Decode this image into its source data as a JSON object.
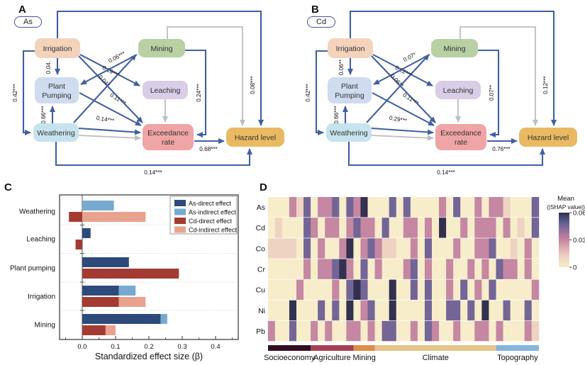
{
  "panel_a": {
    "letter": "A",
    "tag": "As",
    "edge_labels": {
      "irrigation_plant_pumping": "0.04.",
      "irrigation_weathering": "0.42***",
      "weathering_plant_pumping": "0.66***",
      "plant_pumping_mining": "0.06***",
      "irrigation_leaching": "0.19***",
      "irrigation_exceedance": "0.04*",
      "plant_pumping_exceedance": "0.11***",
      "weathering_exceedance": "0.14***",
      "mining_exceedance": "0.24***",
      "exceedance_hazard": "0.68***",
      "irrigation_hazard": "0.08***",
      "weathering_hazard": "0.14***"
    }
  },
  "panel_b": {
    "letter": "B",
    "tag": "Cd",
    "edge_labels": {
      "irrigation_plant_pumping": "0.06**",
      "irrigation_weathering": "0.42***",
      "weathering_plant_pumping": "0.66***",
      "plant_pumping_mining": "0.07*",
      "irrigation_leaching": "0.22***",
      "irrigation_exceedance": "0.06**",
      "plant_pumping_exceedance": "0.11***",
      "weathering_exceedance": "0.29***",
      "mining_exceedance": "0.07**",
      "exceedance_hazard": "0.76***",
      "irrigation_hazard": "0.12***",
      "weathering_hazard": "0.14***"
    }
  },
  "panel_c": {
    "letter": "C"
  },
  "panel_d": {
    "letter": "D"
  },
  "sem_nodes": {
    "irrigation": "Irrigation",
    "mining": "Mining",
    "plant_pumping": "Plant Pumping",
    "leaching": "Leaching",
    "weathering": "Weathering",
    "exceedance": "Exceedance rate",
    "hazard": "Hazard level"
  },
  "colors": {
    "node_irrigation": "#f3d3bb",
    "node_mining": "#b8d0a3",
    "node_plant_pumping": "#cfdbee",
    "node_leaching": "#dacde7",
    "node_weathering": "#c6e3ee",
    "node_exceedance": "#efa4a6",
    "node_hazard": "#e9ba62",
    "arrow_blue": "#41609f",
    "arrow_gray": "#bcbdbf",
    "pill_border": "#4e51a0"
  },
  "chart_data": [
    {
      "id": "C",
      "type": "bar",
      "orientation": "horizontal",
      "xlabel": "Standardized effect size (β)",
      "categories": [
        "Weathering",
        "Leaching",
        "Plant pumping",
        "Irrigation",
        "Mining"
      ],
      "series": [
        {
          "name": "As-direct effect",
          "color": "#2d4a7a",
          "role": "direct",
          "pair": "As",
          "values": [
            0,
            0.025,
            0.14,
            0.11,
            0.235
          ]
        },
        {
          "name": "As-indirect effect",
          "color": "#76aace",
          "role": "indirect",
          "pair": "As",
          "values": [
            0.095,
            0,
            0,
            0.05,
            0.02
          ]
        },
        {
          "name": "Cd-direct effect",
          "color": "#a43b32",
          "role": "direct",
          "pair": "Cd",
          "values": [
            -0.04,
            -0.02,
            0.29,
            0.11,
            0.07
          ]
        },
        {
          "name": "Cd-indirect effect",
          "color": "#e9a28e",
          "role": "indirect",
          "pair": "Cd",
          "values": [
            0.19,
            0,
            0,
            0.08,
            0.03
          ]
        }
      ],
      "stacking": "indirect stacked after direct within each element pair",
      "xlim": [
        -0.068,
        0.468
      ],
      "xticks": [
        0.0,
        0.1,
        0.2,
        0.3,
        0.4
      ],
      "xtick_labels": [
        "0.0",
        "0.1",
        "0.2",
        "0.3",
        "0.4"
      ],
      "legend_position": "top-right",
      "grid": "dotted separators between categories"
    },
    {
      "id": "D",
      "type": "heatmap",
      "rows": [
        "As",
        "Cd",
        "Co",
        "Cr",
        "Cu",
        "Ni",
        "Pb"
      ],
      "n_columns": 38,
      "vmin": 0,
      "vmax": 0.06,
      "values": [
        [
          0,
          0,
          0,
          0.03,
          0.012,
          0.046,
          0,
          0.03,
          0.03,
          0.046,
          0,
          0.046,
          0.03,
          0.06,
          0,
          0,
          0,
          0.046,
          0,
          0.046,
          0,
          0,
          0,
          0,
          0.03,
          0,
          0.046,
          0,
          0,
          0.03,
          0,
          0.03,
          0.03,
          0.012,
          0,
          0,
          0,
          0.046
        ],
        [
          0,
          0.012,
          0,
          0,
          0,
          0.046,
          0.03,
          0,
          0.03,
          0.03,
          0,
          0.03,
          0.046,
          0.03,
          0.03,
          0,
          0.046,
          0,
          0,
          0.03,
          0.03,
          0,
          0.03,
          0,
          0.06,
          0,
          0,
          0.03,
          0,
          0.03,
          0.03,
          0.03,
          0,
          0.03,
          0,
          0.012,
          0,
          0.046
        ],
        [
          0.012,
          0.012,
          0.012,
          0.012,
          0,
          0.046,
          0,
          0.03,
          0,
          0,
          0.03,
          0.06,
          0,
          0.03,
          0.046,
          0.03,
          0.012,
          0.012,
          0,
          0,
          0.03,
          0,
          0.046,
          0,
          0,
          0,
          0.03,
          0,
          0,
          0.03,
          0.03,
          0.046,
          0,
          0,
          0.012,
          0,
          0.03,
          0
        ],
        [
          0,
          0,
          0,
          0,
          0,
          0.03,
          0,
          0.03,
          0.03,
          0.046,
          0.06,
          0.03,
          0,
          0.046,
          0,
          0.03,
          0,
          0,
          0,
          0.03,
          0.046,
          0,
          0.03,
          0,
          0,
          0.03,
          0,
          0,
          0.03,
          0,
          0.03,
          0,
          0.046,
          0.03,
          0.03,
          0,
          0.03,
          0
        ],
        [
          0,
          0,
          0,
          0,
          0.03,
          0,
          0,
          0,
          0,
          0.03,
          0,
          0.046,
          0.06,
          0.046,
          0,
          0,
          0,
          0.06,
          0,
          0,
          0.046,
          0,
          0.046,
          0,
          0,
          0.03,
          0,
          0.046,
          0,
          0.03,
          0,
          0.046,
          0,
          0,
          0,
          0,
          0,
          0.03
        ],
        [
          0,
          0,
          0,
          0.06,
          0,
          0,
          0,
          0.046,
          0,
          0.046,
          0,
          0.06,
          0,
          0.03,
          0.046,
          0,
          0,
          0.06,
          0,
          0,
          0,
          0,
          0.046,
          0,
          0,
          0.046,
          0.046,
          0,
          0.046,
          0,
          0.06,
          0,
          0,
          0.046,
          0,
          0,
          0.046,
          0
        ],
        [
          0.03,
          0,
          0,
          0.046,
          0,
          0,
          0.03,
          0,
          0.03,
          0,
          0,
          0.03,
          0.03,
          0,
          0.03,
          0,
          0.046,
          0.046,
          0,
          0,
          0.03,
          0,
          0.046,
          0.03,
          0,
          0,
          0.03,
          0,
          0,
          0.03,
          0.03,
          0,
          0.03,
          0,
          0,
          0,
          0.03,
          0.012
        ]
      ],
      "colormap_stops": [
        {
          "value": 0,
          "color": "#f7edcb"
        },
        {
          "value": 0.012,
          "color": "#eed3c1"
        },
        {
          "value": 0.024,
          "color": "#d5a0aa"
        },
        {
          "value": 0.032,
          "color": "#bf7f9f"
        },
        {
          "value": 0.042,
          "color": "#8a6d9d"
        },
        {
          "value": 0.05,
          "color": "#5c5c8e"
        },
        {
          "value": 0.06,
          "color": "#33314f"
        }
      ],
      "colorbar": {
        "title_line1": "Mean",
        "title_line2": "(|SHAP value|)",
        "ticks": [
          0.06,
          0.03,
          0
        ],
        "tick_labels": [
          "0.06",
          "0.03",
          "0"
        ]
      },
      "column_groups": [
        {
          "label": "Socioeconomy",
          "span": 6,
          "color": "#330d24"
        },
        {
          "label": "Agriculture",
          "span": 6,
          "color": "#a64054"
        },
        {
          "label": "Mining",
          "span": 3,
          "color": "#df8d4b"
        },
        {
          "label": "Climate",
          "span": 17,
          "color": "#e4c489"
        },
        {
          "label": "Topography",
          "span": 6,
          "color": "#85b6dc"
        }
      ]
    }
  ]
}
